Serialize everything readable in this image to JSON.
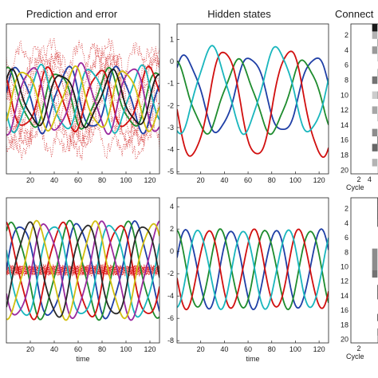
{
  "titles": {
    "left": "Prediction and error",
    "middle": "Hidden states",
    "right": "Connect"
  },
  "chart_data": [
    {
      "id": "top-left",
      "type": "line",
      "title": "Prediction and error",
      "xlabel": "",
      "xlim": [
        0,
        128
      ],
      "ylim": [
        -2.3,
        2.3
      ],
      "xticks": [
        20,
        40,
        60,
        80,
        100,
        120
      ],
      "series": [
        {
          "color": "#1f3fa6",
          "period": 42,
          "phase": 0.2,
          "amp": 0.95,
          "offset": 0.0,
          "style": "solid"
        },
        {
          "color": "#1e8c2e",
          "period": 42,
          "phase": 1.4,
          "amp": 0.85,
          "offset": 0.0,
          "style": "solid"
        },
        {
          "color": "#d10f0f",
          "period": 42,
          "phase": 2.5,
          "amp": 0.9,
          "offset": 0.0,
          "style": "solid"
        },
        {
          "color": "#19b6bd",
          "period": 42,
          "phase": 3.6,
          "amp": 0.95,
          "offset": 0.0,
          "style": "solid"
        },
        {
          "color": "#9b2a9e",
          "period": 42,
          "phase": 4.7,
          "amp": 1.0,
          "offset": 0.0,
          "style": "solid"
        },
        {
          "color": "#d2bf10",
          "period": 42,
          "phase": 5.6,
          "amp": 0.9,
          "offset": 0.0,
          "style": "solid"
        },
        {
          "color": "#1a1a1a",
          "period": 42,
          "phase": 0.9,
          "amp": 0.8,
          "offset": 0.0,
          "style": "solid"
        }
      ],
      "error_series": {
        "color": "#d63a3a",
        "count": 8,
        "amp": 1.8,
        "period": 48
      }
    },
    {
      "id": "top-middle",
      "type": "line",
      "title": "Hidden states",
      "xlim": [
        0,
        128
      ],
      "ylim": [
        -5.1,
        1.7
      ],
      "yticks": [
        1,
        0,
        -1,
        -2,
        -3,
        -4,
        -5
      ],
      "xticks": [
        20,
        40,
        60,
        80,
        100,
        120
      ],
      "series": [
        {
          "color": "#1f3fa6",
          "period": 55,
          "phase": 0.8,
          "amp": 1.7,
          "offset": -1.5
        },
        {
          "color": "#1e8c2e",
          "period": 55,
          "phase": 1.9,
          "amp": 1.6,
          "offset": -1.6
        },
        {
          "color": "#d10f0f",
          "period": 55,
          "phase": 3.3,
          "amp": 2.4,
          "offset": -1.9
        },
        {
          "color": "#19b6bd",
          "period": 55,
          "phase": 4.5,
          "amp": 1.9,
          "offset": -1.3
        }
      ]
    },
    {
      "id": "bottom-left",
      "type": "line",
      "xlabel": "time",
      "xlim": [
        0,
        128
      ],
      "ylim": [
        -2.5,
        2.5
      ],
      "xticks": [
        20,
        40,
        60,
        80,
        100,
        120
      ],
      "series": [
        {
          "color": "#1f3fa6",
          "period": 48,
          "phase": 0.0,
          "amp": 1.6,
          "offset": 0.0
        },
        {
          "color": "#1e8c2e",
          "period": 48,
          "phase": 0.9,
          "amp": 1.6,
          "offset": 0.0
        },
        {
          "color": "#d10f0f",
          "period": 48,
          "phase": 1.8,
          "amp": 1.6,
          "offset": 0.0
        },
        {
          "color": "#19b6bd",
          "period": 48,
          "phase": 2.7,
          "amp": 1.6,
          "offset": 0.0
        },
        {
          "color": "#9b2a9e",
          "period": 48,
          "phase": 3.6,
          "amp": 1.6,
          "offset": 0.0
        },
        {
          "color": "#d2bf10",
          "period": 48,
          "phase": 4.5,
          "amp": 1.6,
          "offset": 0.0
        },
        {
          "color": "#2a2a2a",
          "period": 48,
          "phase": 5.4,
          "amp": 1.6,
          "offset": 0.0
        }
      ],
      "error_series": {
        "color": "#e02020",
        "count": 10,
        "amp": 0.18,
        "period": 4
      }
    },
    {
      "id": "bottom-middle",
      "type": "line",
      "xlabel": "time",
      "xlim": [
        0,
        128
      ],
      "ylim": [
        -8.2,
        4.8
      ],
      "yticks": [
        4,
        2,
        0,
        -2,
        -4,
        -6,
        -8
      ],
      "xticks": [
        20,
        40,
        60,
        80,
        100,
        120
      ],
      "series": [
        {
          "color": "#1f3fa6",
          "period": 38,
          "phase": 0.3,
          "amp": 3.5,
          "offset": -1.6
        },
        {
          "color": "#1e8c2e",
          "period": 38,
          "phase": 1.8,
          "amp": 3.5,
          "offset": -1.6
        },
        {
          "color": "#d10f0f",
          "period": 38,
          "phase": 3.4,
          "amp": 3.5,
          "offset": -1.6
        },
        {
          "color": "#19b6bd",
          "period": 38,
          "phase": 4.9,
          "amp": 3.5,
          "offset": -1.6
        }
      ]
    },
    {
      "id": "top-right",
      "type": "heatmap",
      "title": "Connect",
      "xlabel": "Cycle",
      "yticks": [
        2,
        4,
        6,
        8,
        10,
        12,
        14,
        16,
        18,
        20
      ],
      "xticks": [
        2,
        4
      ],
      "cells": [
        [
          0,
          0,
          0,
          0,
          0.9,
          0.0
        ],
        [
          0,
          0,
          0,
          0,
          0.3,
          0.0
        ],
        [
          0,
          0,
          0,
          0,
          0.0,
          0.5
        ],
        [
          0,
          0,
          0,
          0,
          0.4,
          0.0
        ],
        [
          0,
          0,
          0,
          0,
          0.0,
          0.25
        ],
        [
          0,
          0,
          0,
          0,
          0.0,
          0.0
        ],
        [
          0,
          0,
          0,
          0,
          0.0,
          0.35
        ],
        [
          0,
          0,
          0,
          0,
          0.55,
          0.0
        ],
        [
          0,
          0,
          0,
          0,
          0.0,
          0.0
        ],
        [
          0,
          0,
          0,
          0,
          0.2,
          0.4
        ],
        [
          0,
          0,
          0,
          0,
          0.0,
          0.0
        ],
        [
          0,
          0,
          0,
          0,
          0.35,
          0.0
        ],
        [
          0,
          0,
          0,
          0,
          0.0,
          0.3
        ],
        [
          0,
          0,
          0,
          0,
          0.0,
          0.0
        ],
        [
          0,
          0,
          0,
          0,
          0.45,
          0.0
        ],
        [
          0,
          0,
          0,
          0,
          0.0,
          0.7
        ],
        [
          0,
          0,
          0,
          0,
          0.6,
          0.3
        ],
        [
          0,
          0,
          0,
          0,
          0.0,
          0.0
        ],
        [
          0,
          0,
          0,
          0,
          0.3,
          0.0
        ],
        [
          0,
          0,
          0,
          0,
          0.0,
          0.2
        ]
      ]
    },
    {
      "id": "bottom-right",
      "type": "heatmap",
      "xlabel": "Cycle",
      "yticks": [
        2,
        4,
        6,
        8,
        10,
        12,
        14,
        16,
        18,
        20
      ],
      "xticks": [
        2
      ],
      "cells": [
        [
          0,
          0,
          0,
          0,
          0.0,
          0.95
        ],
        [
          0,
          0,
          0,
          0,
          0.0,
          0.95
        ],
        [
          0,
          0,
          0,
          0,
          0.0,
          0.95
        ],
        [
          0,
          0,
          0,
          0,
          0.0,
          0.9
        ],
        [
          0,
          0,
          0,
          0,
          0.0,
          0.0
        ],
        [
          0,
          0,
          0,
          0,
          0.0,
          0.0
        ],
        [
          0,
          0,
          0,
          0,
          0.0,
          0.0
        ],
        [
          0,
          0,
          0,
          0,
          0.45,
          0.0
        ],
        [
          0,
          0,
          0,
          0,
          0.45,
          0.0
        ],
        [
          0,
          0,
          0,
          0,
          0.45,
          0.0
        ],
        [
          0,
          0,
          0,
          0,
          0.55,
          0.0
        ],
        [
          0,
          0,
          0,
          0,
          0.0,
          0.0
        ],
        [
          0,
          0,
          0,
          0,
          0.0,
          0.85
        ],
        [
          0,
          0,
          0,
          0,
          0.0,
          0.85
        ],
        [
          0,
          0,
          0,
          0,
          0.0,
          0.0
        ],
        [
          0,
          0,
          0,
          0,
          0.0,
          0.0
        ],
        [
          0,
          0,
          0,
          0,
          0.0,
          0.9
        ],
        [
          0,
          0,
          0,
          0,
          0.0,
          0.0
        ],
        [
          0,
          0,
          0,
          0,
          0.0,
          0.6
        ],
        [
          0,
          0,
          0,
          0,
          0.0,
          0.4
        ]
      ]
    }
  ],
  "colors": {
    "axis": "#222222",
    "background": "#ffffff"
  }
}
